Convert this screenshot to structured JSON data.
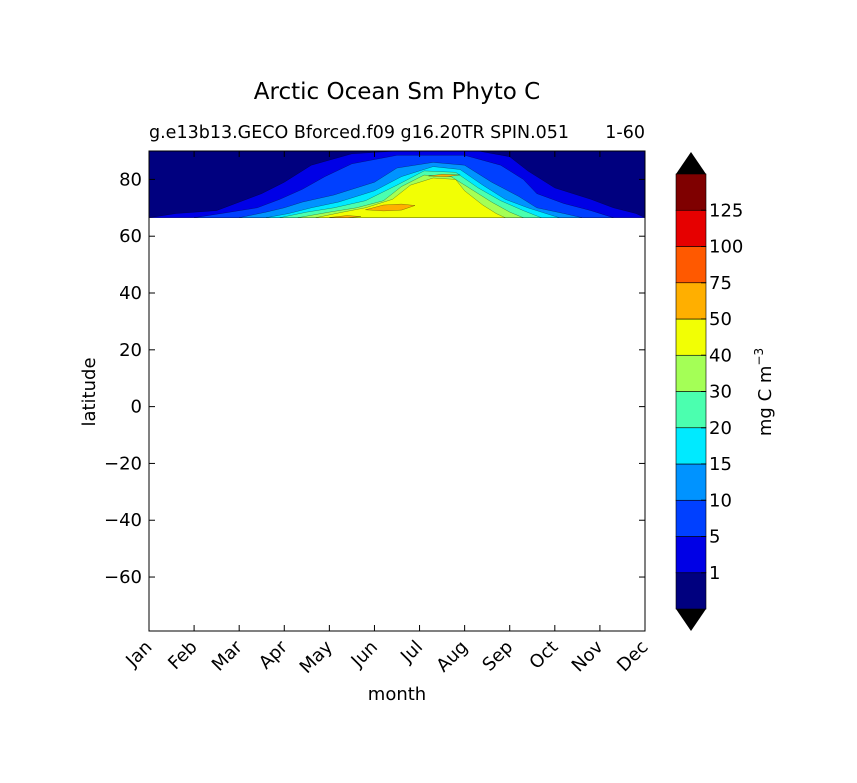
{
  "chart_data": {
    "type": "heatmap",
    "title": "Arctic Ocean Sm Phyto C",
    "subtitle_left": "g.e13b13.GECO Bforced.f09 g16.20TR SPIN.051",
    "subtitle_right": "1-60",
    "xlabel": "month",
    "ylabel": "latitude",
    "x_tick_labels": [
      "Jan",
      "Feb",
      "Mar",
      "Apr",
      "May",
      "Jun",
      "Jul",
      "Aug",
      "Sep",
      "Oct",
      "Nov",
      "Dec"
    ],
    "ylim": [
      -79,
      90
    ],
    "y_ticks": [
      80,
      60,
      40,
      20,
      0,
      -20,
      -40,
      -60
    ],
    "y_tick_labels": [
      "80",
      "60",
      "40",
      "20",
      "0",
      "−20",
      "−40",
      "−60"
    ],
    "data_lat_min": 66.5,
    "colorbar": {
      "label": "mg C m",
      "label_exponent": "−3",
      "levels": [
        0,
        1,
        5,
        10,
        15,
        20,
        30,
        40,
        50,
        75,
        100,
        125,
        150
      ],
      "tick_labels": [
        "1",
        "5",
        "10",
        "15",
        "20",
        "30",
        "40",
        "50",
        "75",
        "100",
        "125"
      ],
      "colors": [
        "#00007f",
        "#0000e6",
        "#0040ff",
        "#0093ff",
        "#00eaff",
        "#4bffaf",
        "#a4ff56",
        "#f2ff04",
        "#ffaf00",
        "#ff5900",
        "#e60000",
        "#7f0000"
      ],
      "extend": "both"
    },
    "bands": [
      {
        "level": 1,
        "poly": [
          [
            1.0,
            66.5
          ],
          [
            1.6,
            68
          ],
          [
            2.5,
            69
          ],
          [
            3.0,
            72
          ],
          [
            3.5,
            75
          ],
          [
            4.0,
            79
          ],
          [
            4.6,
            85
          ],
          [
            5.5,
            89
          ],
          [
            6.5,
            90
          ],
          [
            8.3,
            90
          ],
          [
            9.0,
            88
          ],
          [
            9.4,
            83
          ],
          [
            10.0,
            77
          ],
          [
            10.8,
            73
          ],
          [
            11.3,
            70
          ],
          [
            11.8,
            68
          ],
          [
            12.0,
            66.5
          ]
        ]
      },
      {
        "level": 5,
        "poly": [
          [
            2.0,
            66.5
          ],
          [
            2.8,
            68.5
          ],
          [
            3.4,
            70
          ],
          [
            3.9,
            73
          ],
          [
            4.4,
            76.5
          ],
          [
            4.9,
            81
          ],
          [
            5.5,
            85.5
          ],
          [
            6.5,
            88.5
          ],
          [
            8.0,
            88.5
          ],
          [
            8.8,
            85
          ],
          [
            9.3,
            80
          ],
          [
            9.6,
            75
          ],
          [
            10.2,
            71.5
          ],
          [
            10.8,
            69
          ],
          [
            11.3,
            66.5
          ]
        ]
      },
      {
        "level": 10,
        "poly": [
          [
            3.0,
            66.5
          ],
          [
            3.6,
            68.5
          ],
          [
            4.0,
            70
          ],
          [
            4.4,
            72
          ],
          [
            5.1,
            74.5
          ],
          [
            6.0,
            79
          ],
          [
            6.5,
            84
          ],
          [
            7.3,
            86
          ],
          [
            8.0,
            85
          ],
          [
            8.6,
            79
          ],
          [
            9.2,
            74
          ],
          [
            9.6,
            70
          ],
          [
            10.2,
            68
          ],
          [
            10.6,
            66.5
          ]
        ]
      },
      {
        "level": 15,
        "poly": [
          [
            3.6,
            66.5
          ],
          [
            4.1,
            68
          ],
          [
            4.6,
            70
          ],
          [
            5.2,
            72
          ],
          [
            6.0,
            76
          ],
          [
            6.6,
            81
          ],
          [
            7.3,
            84.5
          ],
          [
            7.9,
            83.5
          ],
          [
            8.4,
            78
          ],
          [
            8.9,
            73
          ],
          [
            9.4,
            70
          ],
          [
            9.9,
            67.5
          ],
          [
            10.1,
            66.5
          ]
        ]
      },
      {
        "level": 20,
        "poly": [
          [
            3.9,
            66.5
          ],
          [
            4.5,
            68.5
          ],
          [
            5.1,
            70
          ],
          [
            5.8,
            72.5
          ],
          [
            6.5,
            78
          ],
          [
            7.1,
            83
          ],
          [
            7.8,
            82.5
          ],
          [
            8.3,
            77
          ],
          [
            8.8,
            72.5
          ],
          [
            9.3,
            69
          ],
          [
            9.7,
            66.5
          ]
        ]
      },
      {
        "level": 30,
        "poly": [
          [
            4.3,
            66.5
          ],
          [
            5.0,
            68.5
          ],
          [
            5.6,
            70
          ],
          [
            6.2,
            72.5
          ],
          [
            6.6,
            77.5
          ],
          [
            7.1,
            81.5
          ],
          [
            7.7,
            81
          ],
          [
            8.1,
            77
          ],
          [
            8.6,
            72
          ],
          [
            9.0,
            68.5
          ],
          [
            9.3,
            66.5
          ]
        ]
      },
      {
        "level": 40,
        "poly": [
          [
            4.7,
            66.5
          ],
          [
            5.3,
            68.5
          ],
          [
            5.8,
            70
          ],
          [
            6.4,
            73
          ],
          [
            6.8,
            78
          ],
          [
            7.3,
            80.5
          ],
          [
            7.8,
            80
          ],
          [
            8.0,
            76
          ],
          [
            8.4,
            71
          ],
          [
            8.7,
            68
          ],
          [
            8.9,
            66.5
          ]
        ]
      },
      {
        "level": 50,
        "poly": [
          [
            5.8,
            69.3
          ],
          [
            6.2,
            71
          ],
          [
            6.6,
            71.3
          ],
          [
            6.9,
            70.8
          ],
          [
            6.6,
            69.2
          ],
          [
            6.2,
            68.9
          ]
        ]
      },
      {
        "level": 50,
        "poly": [
          [
            7.2,
            81.2
          ],
          [
            7.5,
            81.8
          ],
          [
            7.9,
            81.6
          ],
          [
            7.6,
            80.9
          ]
        ]
      },
      {
        "level": 50,
        "poly": [
          [
            5.0,
            66.6
          ],
          [
            5.4,
            67.3
          ],
          [
            5.7,
            66.9
          ],
          [
            5.4,
            66.5
          ]
        ]
      }
    ]
  }
}
